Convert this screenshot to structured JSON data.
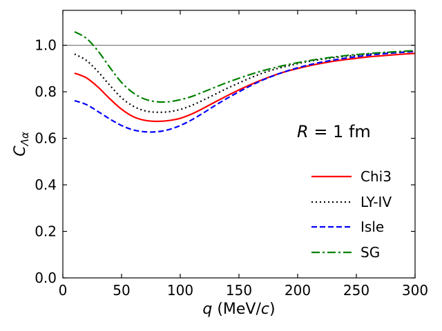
{
  "chart_data": {
    "type": "line",
    "title": "",
    "xlabel_var": "q",
    "xlabel_unit_open": " (MeV/",
    "xlabel_unit_var": "c",
    "xlabel_unit_close": ")",
    "ylabel_main": "C",
    "ylabel_sub": "Λα",
    "xlim": [
      0,
      300
    ],
    "ylim": [
      0.0,
      1.15
    ],
    "xticks": [
      0,
      50,
      100,
      150,
      200,
      250,
      300
    ],
    "xtick_labels": [
      "0",
      "50",
      "100",
      "150",
      "200",
      "250",
      "300"
    ],
    "yticks": [
      0.0,
      0.2,
      0.4,
      0.6,
      0.8,
      1.0
    ],
    "ytick_labels": [
      "0.0",
      "0.2",
      "0.4",
      "0.6",
      "0.8",
      "1.0"
    ],
    "reference_line_y": 1.0,
    "annotation": {
      "var": "R",
      "rest": " = 1 fm"
    },
    "legend_position": "lower-right",
    "x": [
      10,
      20,
      30,
      40,
      50,
      60,
      70,
      80,
      90,
      100,
      110,
      120,
      130,
      140,
      150,
      160,
      170,
      180,
      190,
      200,
      210,
      220,
      230,
      240,
      250,
      260,
      270,
      280,
      290,
      300
    ],
    "series": [
      {
        "name": "Chi3",
        "color": "#ff0000",
        "dash": "solid",
        "values": [
          0.88,
          0.86,
          0.82,
          0.77,
          0.725,
          0.693,
          0.677,
          0.673,
          0.676,
          0.686,
          0.705,
          0.73,
          0.757,
          0.783,
          0.808,
          0.831,
          0.852,
          0.871,
          0.887,
          0.9,
          0.912,
          0.922,
          0.931,
          0.938,
          0.944,
          0.95,
          0.954,
          0.958,
          0.962,
          0.965
        ]
      },
      {
        "name": "LY-IV",
        "color": "#000000",
        "dash": "dotted",
        "values": [
          0.962,
          0.935,
          0.886,
          0.828,
          0.774,
          0.738,
          0.718,
          0.712,
          0.714,
          0.724,
          0.742,
          0.765,
          0.79,
          0.815,
          0.838,
          0.86,
          0.88,
          0.896,
          0.909,
          0.921,
          0.931,
          0.939,
          0.946,
          0.952,
          0.957,
          0.962,
          0.966,
          0.969,
          0.972,
          0.974
        ]
      },
      {
        "name": "Isle",
        "color": "#0000ff",
        "dash": "dashed",
        "values": [
          0.762,
          0.745,
          0.715,
          0.683,
          0.655,
          0.636,
          0.628,
          0.628,
          0.637,
          0.655,
          0.68,
          0.71,
          0.742,
          0.772,
          0.8,
          0.826,
          0.85,
          0.87,
          0.888,
          0.903,
          0.916,
          0.927,
          0.936,
          0.944,
          0.951,
          0.957,
          0.962,
          0.966,
          0.97,
          0.973
        ]
      },
      {
        "name": "SG",
        "color": "#008000",
        "dash": "dashdot",
        "values": [
          1.058,
          1.03,
          0.975,
          0.905,
          0.84,
          0.795,
          0.768,
          0.757,
          0.757,
          0.766,
          0.78,
          0.8,
          0.82,
          0.84,
          0.858,
          0.875,
          0.89,
          0.903,
          0.915,
          0.925,
          0.934,
          0.942,
          0.949,
          0.955,
          0.96,
          0.964,
          0.968,
          0.971,
          0.974,
          0.977
        ]
      }
    ]
  }
}
